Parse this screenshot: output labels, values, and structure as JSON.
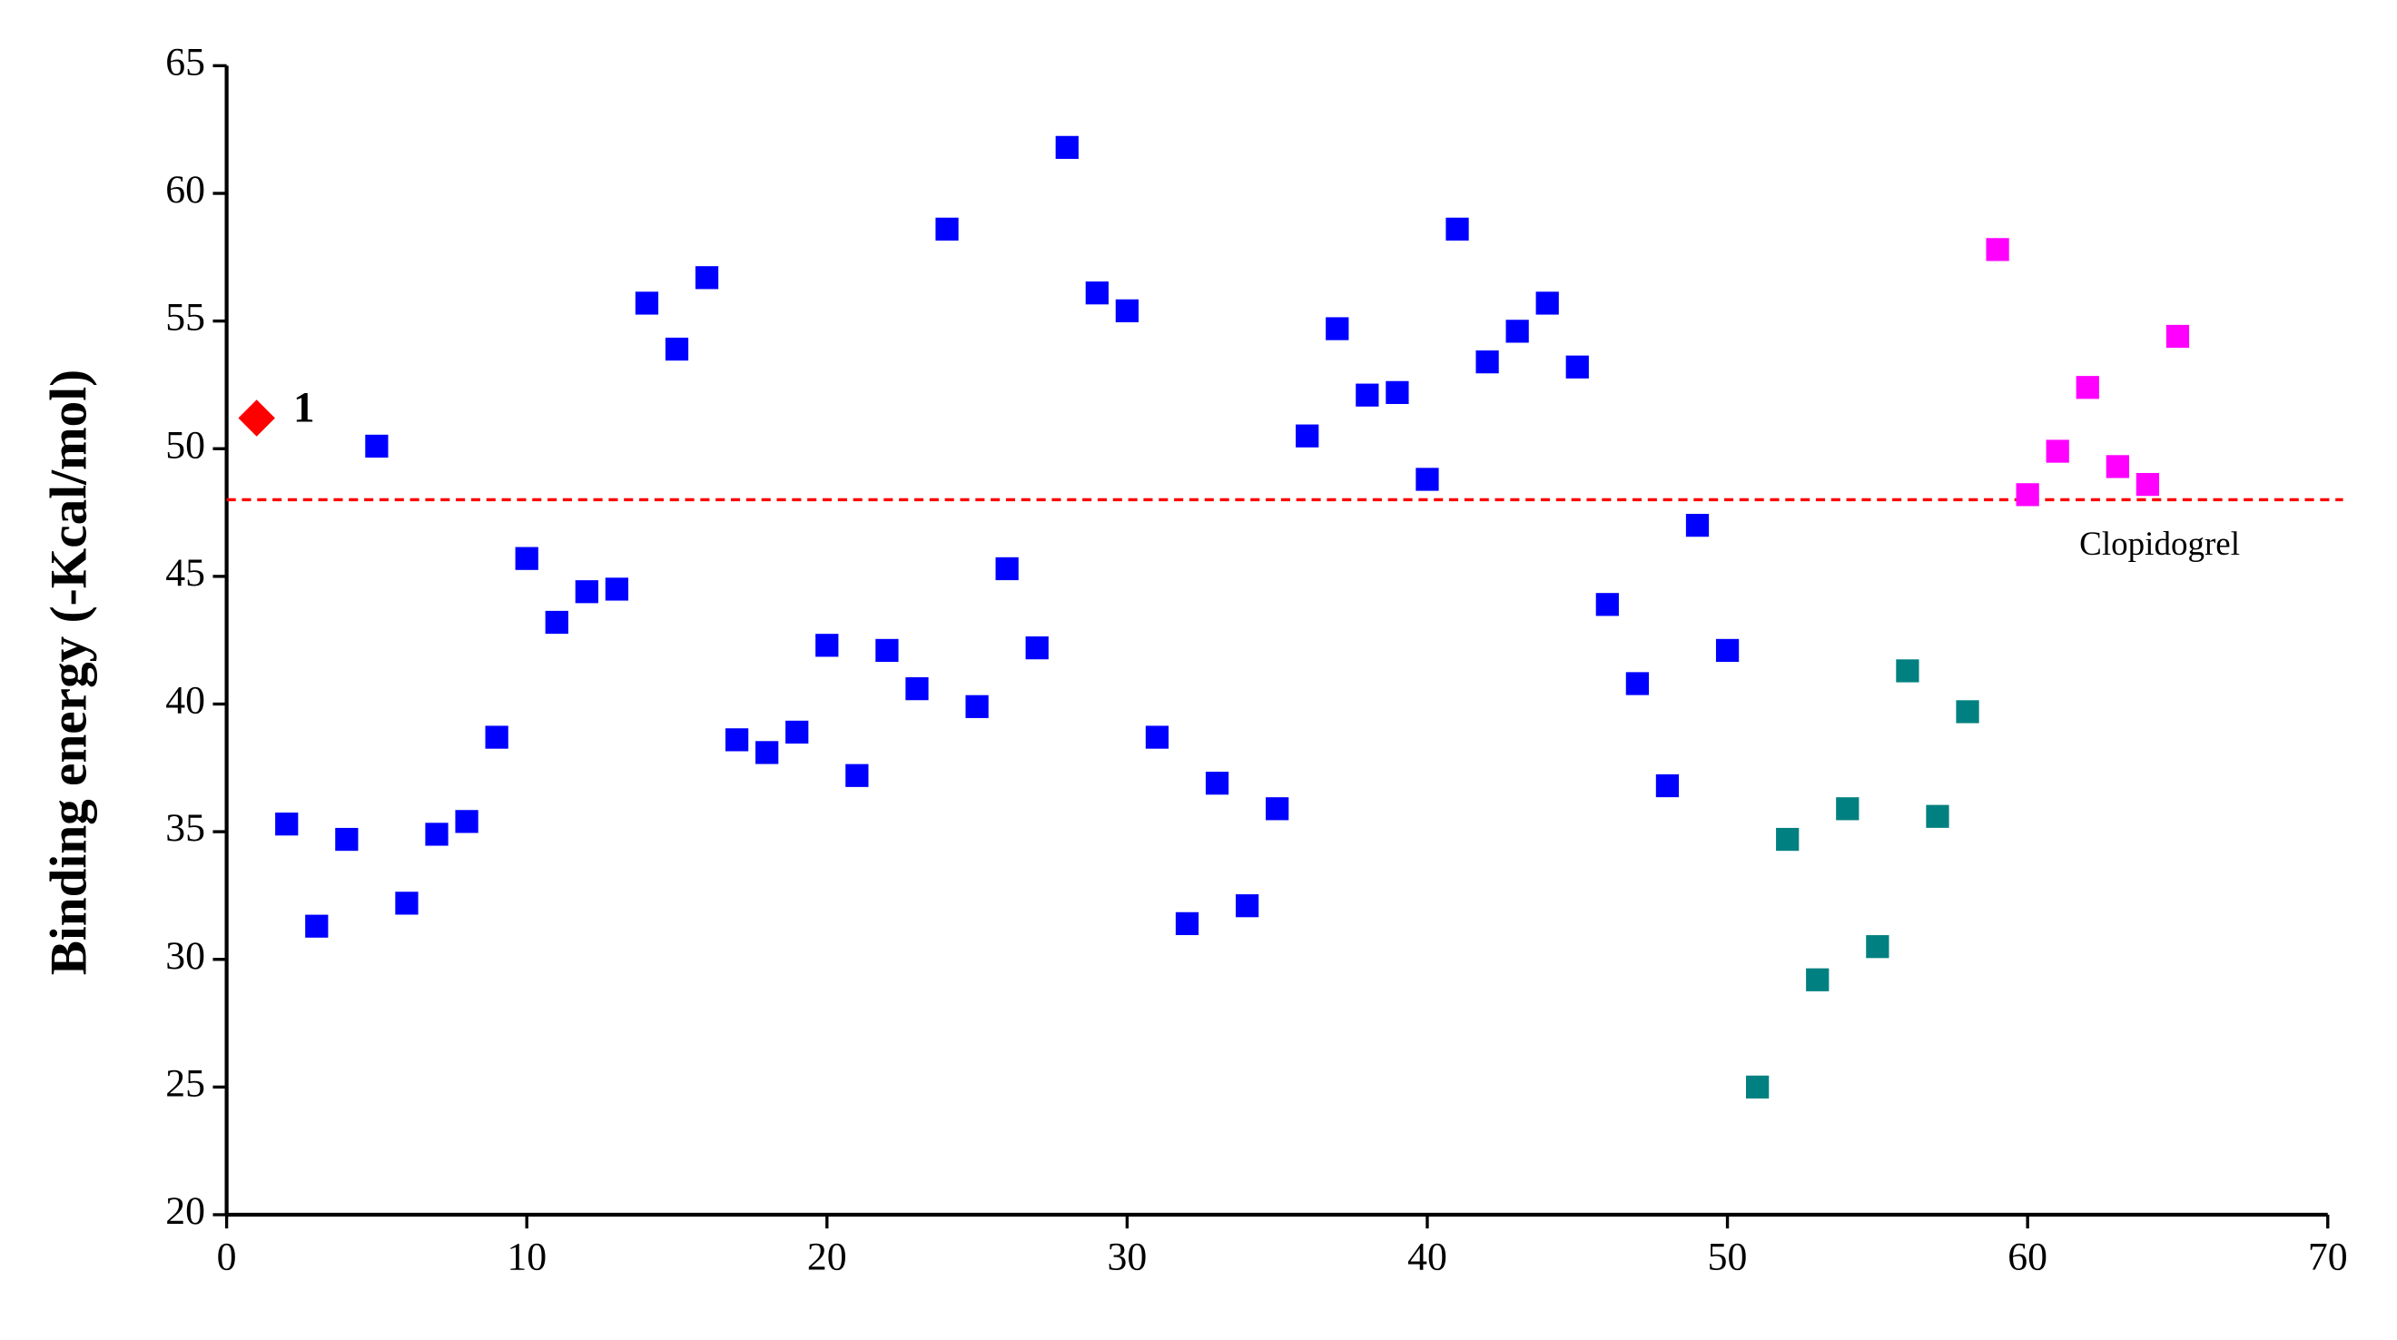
{
  "chart_data": {
    "type": "scatter",
    "ylabel": "Binding energy (-Kcal/mol)",
    "xlim": [
      0,
      70
    ],
    "ylim": [
      20,
      65
    ],
    "xticks": [
      0,
      10,
      20,
      30,
      40,
      50,
      60,
      70
    ],
    "yticks": [
      20,
      25,
      30,
      35,
      40,
      45,
      50,
      55,
      60,
      65
    ],
    "series": [
      {
        "color": "#ff0000",
        "marker": "diamond",
        "label": "1",
        "x": [
          1
        ],
        "values": [
          51.2
        ]
      },
      {
        "color": "#0000ff",
        "marker": "square",
        "x": [
          2,
          3,
          4,
          5,
          6,
          7,
          8,
          9,
          10,
          11,
          12,
          13,
          14,
          15,
          16,
          17,
          18,
          19,
          20,
          21,
          22,
          23,
          24,
          25,
          26,
          27,
          28,
          29,
          30,
          31,
          32,
          33,
          34,
          35,
          36,
          37,
          38,
          39,
          40,
          41,
          42,
          43,
          44,
          45,
          46,
          47,
          48,
          49,
          50
        ],
        "values": [
          35.3,
          31.3,
          34.7,
          50.1,
          32.2,
          34.9,
          35.4,
          38.7,
          45.7,
          43.2,
          44.4,
          44.5,
          55.7,
          53.9,
          56.7,
          38.6,
          38.1,
          38.9,
          42.3,
          37.2,
          42.1,
          40.6,
          58.6,
          39.9,
          45.3,
          42.2,
          61.8,
          56.1,
          55.4,
          38.7,
          31.4,
          36.9,
          32.1,
          35.9,
          50.5,
          54.7,
          52.1,
          52.2,
          48.8,
          58.6,
          53.4,
          54.6,
          55.7,
          53.2,
          43.9,
          40.8,
          36.8,
          47.0,
          42.1
        ]
      },
      {
        "color": "#008080",
        "marker": "square",
        "x": [
          51,
          52,
          53,
          54,
          55,
          56,
          57,
          58
        ],
        "values": [
          25.0,
          34.7,
          29.2,
          35.9,
          30.5,
          41.3,
          35.6,
          39.7
        ]
      },
      {
        "color": "#ff00ff",
        "marker": "square",
        "x": [
          59,
          60,
          61,
          62,
          63,
          64,
          65
        ],
        "values": [
          57.8,
          48.2,
          49.9,
          52.4,
          49.3,
          48.6,
          54.4
        ]
      }
    ],
    "reference_line": {
      "value": 48.0,
      "label": "Clopidogrel",
      "color": "#ff0000"
    }
  }
}
